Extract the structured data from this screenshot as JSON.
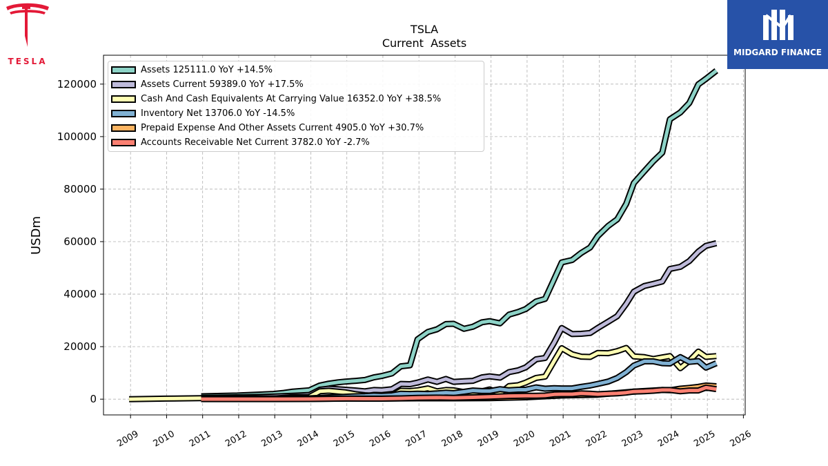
{
  "brand": {
    "left_logo_text": "TESLA",
    "right_logo_text": "MIDGARD FINANCE",
    "right_bg_color": "#2752a8",
    "left_color": "#e31937"
  },
  "chart_data": {
    "type": "line",
    "title": "TSLA",
    "subtitle": "Current  Assets",
    "xlabel": "",
    "ylabel": "USDm",
    "xlim": [
      2008.25,
      2026.05
    ],
    "ylim": [
      -6000,
      131000
    ],
    "x_ticks": [
      "2009",
      "2010",
      "2011",
      "2012",
      "2013",
      "2014",
      "2015",
      "2016",
      "2017",
      "2018",
      "2019",
      "2020",
      "2021",
      "2022",
      "2023",
      "2024",
      "2025",
      "2026"
    ],
    "y_ticks": [
      "0",
      "20000",
      "40000",
      "60000",
      "80000",
      "100000",
      "120000"
    ],
    "grid": true,
    "legend_position": "top-left",
    "series": [
      {
        "name": "Assets  125111.0 YoY +14.5%",
        "color": "#8dd3c7",
        "points": [
          [
            2010.96,
            1100
          ],
          [
            2011.96,
            1400
          ],
          [
            2012.96,
            2000
          ],
          [
            2013.25,
            2400
          ],
          [
            2013.5,
            2900
          ],
          [
            2013.96,
            3400
          ],
          [
            2014.25,
            5200
          ],
          [
            2014.5,
            5900
          ],
          [
            2014.75,
            6400
          ],
          [
            2014.96,
            6700
          ],
          [
            2015.25,
            7000
          ],
          [
            2015.5,
            7300
          ],
          [
            2015.75,
            8300
          ],
          [
            2015.96,
            8800
          ],
          [
            2016.25,
            9800
          ],
          [
            2016.5,
            12500
          ],
          [
            2016.75,
            12900
          ],
          [
            2016.96,
            22800
          ],
          [
            2017.25,
            25600
          ],
          [
            2017.5,
            26600
          ],
          [
            2017.75,
            28600
          ],
          [
            2017.96,
            28700
          ],
          [
            2018.25,
            26800
          ],
          [
            2018.5,
            27600
          ],
          [
            2018.75,
            29300
          ],
          [
            2018.96,
            29700
          ],
          [
            2019.25,
            28900
          ],
          [
            2019.5,
            32200
          ],
          [
            2019.75,
            33200
          ],
          [
            2019.96,
            34300
          ],
          [
            2020.25,
            37200
          ],
          [
            2020.5,
            38200
          ],
          [
            2020.75,
            45700
          ],
          [
            2020.96,
            52100
          ],
          [
            2021.25,
            53000
          ],
          [
            2021.5,
            55700
          ],
          [
            2021.75,
            57800
          ],
          [
            2021.96,
            62100
          ],
          [
            2022.25,
            66000
          ],
          [
            2022.5,
            68500
          ],
          [
            2022.75,
            74400
          ],
          [
            2022.96,
            82300
          ],
          [
            2023.25,
            86800
          ],
          [
            2023.5,
            90600
          ],
          [
            2023.75,
            93900
          ],
          [
            2023.96,
            106600
          ],
          [
            2024.25,
            109200
          ],
          [
            2024.5,
            112800
          ],
          [
            2024.75,
            119900
          ],
          [
            2024.96,
            122000
          ],
          [
            2025.25,
            125100
          ]
        ]
      },
      {
        "name": "Assets Current  59389.0 YoY +17.5%",
        "color": "#bebada",
        "points": [
          [
            2010.96,
            500
          ],
          [
            2011.96,
            700
          ],
          [
            2012.96,
            1000
          ],
          [
            2013.5,
            1300
          ],
          [
            2013.96,
            1600
          ],
          [
            2014.25,
            3600
          ],
          [
            2014.5,
            4000
          ],
          [
            2014.75,
            3800
          ],
          [
            2014.96,
            3600
          ],
          [
            2015.25,
            3300
          ],
          [
            2015.5,
            3000
          ],
          [
            2015.75,
            3500
          ],
          [
            2015.96,
            3400
          ],
          [
            2016.25,
            3800
          ],
          [
            2016.5,
            5800
          ],
          [
            2016.75,
            5700
          ],
          [
            2016.96,
            6300
          ],
          [
            2017.25,
            7500
          ],
          [
            2017.5,
            6600
          ],
          [
            2017.75,
            7700
          ],
          [
            2017.96,
            6600
          ],
          [
            2018.25,
            6800
          ],
          [
            2018.5,
            7000
          ],
          [
            2018.75,
            8300
          ],
          [
            2018.96,
            8700
          ],
          [
            2019.25,
            8200
          ],
          [
            2019.5,
            10300
          ],
          [
            2019.75,
            11000
          ],
          [
            2019.96,
            12100
          ],
          [
            2020.25,
            15200
          ],
          [
            2020.5,
            15700
          ],
          [
            2020.75,
            21500
          ],
          [
            2020.96,
            27100
          ],
          [
            2021.25,
            24800
          ],
          [
            2021.5,
            24900
          ],
          [
            2021.75,
            25200
          ],
          [
            2021.96,
            27100
          ],
          [
            2022.25,
            29500
          ],
          [
            2022.5,
            31600
          ],
          [
            2022.75,
            36300
          ],
          [
            2022.96,
            40900
          ],
          [
            2023.25,
            43100
          ],
          [
            2023.5,
            43900
          ],
          [
            2023.75,
            44800
          ],
          [
            2023.96,
            49600
          ],
          [
            2024.25,
            50400
          ],
          [
            2024.5,
            52600
          ],
          [
            2024.75,
            56200
          ],
          [
            2024.96,
            58400
          ],
          [
            2025.25,
            59400
          ]
        ]
      },
      {
        "name": "Cash And Cash Equivalents At Carrying Value  16352.0 YoY +38.5%",
        "color": "#ffffb3",
        "points": [
          [
            2008.96,
            0
          ],
          [
            2009.96,
            200
          ],
          [
            2010.96,
            400
          ],
          [
            2011.96,
            400
          ],
          [
            2012.96,
            200
          ],
          [
            2013.5,
            750
          ],
          [
            2013.96,
            850
          ],
          [
            2014.25,
            3000
          ],
          [
            2014.5,
            3200
          ],
          [
            2014.75,
            2900
          ],
          [
            2014.96,
            2600
          ],
          [
            2015.25,
            1900
          ],
          [
            2015.5,
            1500
          ],
          [
            2015.75,
            1300
          ],
          [
            2015.96,
            1200
          ],
          [
            2016.25,
            1400
          ],
          [
            2016.5,
            3200
          ],
          [
            2016.75,
            3100
          ],
          [
            2016.96,
            3400
          ],
          [
            2017.25,
            4100
          ],
          [
            2017.5,
            3000
          ],
          [
            2017.75,
            3500
          ],
          [
            2017.96,
            3400
          ],
          [
            2018.25,
            2700
          ],
          [
            2018.5,
            2200
          ],
          [
            2018.75,
            3000
          ],
          [
            2018.96,
            3700
          ],
          [
            2019.25,
            2200
          ],
          [
            2019.5,
            5000
          ],
          [
            2019.75,
            5300
          ],
          [
            2019.96,
            6300
          ],
          [
            2020.25,
            8100
          ],
          [
            2020.5,
            8600
          ],
          [
            2020.75,
            14500
          ],
          [
            2020.96,
            19400
          ],
          [
            2021.25,
            17100
          ],
          [
            2021.5,
            16200
          ],
          [
            2021.75,
            16100
          ],
          [
            2021.96,
            17600
          ],
          [
            2022.25,
            17500
          ],
          [
            2022.5,
            18300
          ],
          [
            2022.75,
            19500
          ],
          [
            2022.96,
            16300
          ],
          [
            2023.25,
            16000
          ],
          [
            2023.5,
            15300
          ],
          [
            2023.75,
            15900
          ],
          [
            2023.96,
            16400
          ],
          [
            2024.25,
            11800
          ],
          [
            2024.5,
            14600
          ],
          [
            2024.75,
            18100
          ],
          [
            2024.96,
            16100
          ],
          [
            2025.25,
            16400
          ]
        ]
      },
      {
        "name": "Inventory Net  13706.0 YoY -14.5%",
        "color": "#80b1d3",
        "points": [
          [
            2010.96,
            100
          ],
          [
            2011.96,
            300
          ],
          [
            2012.96,
            300
          ],
          [
            2013.5,
            400
          ],
          [
            2013.96,
            300
          ],
          [
            2014.25,
            500
          ],
          [
            2014.5,
            700
          ],
          [
            2014.75,
            800
          ],
          [
            2014.96,
            950
          ],
          [
            2015.25,
            1100
          ],
          [
            2015.5,
            1200
          ],
          [
            2015.75,
            1400
          ],
          [
            2015.96,
            1300
          ],
          [
            2016.25,
            1500
          ],
          [
            2016.5,
            2100
          ],
          [
            2016.75,
            2000
          ],
          [
            2016.96,
            2100
          ],
          [
            2017.25,
            2000
          ],
          [
            2017.5,
            2200
          ],
          [
            2017.75,
            2500
          ],
          [
            2017.96,
            2300
          ],
          [
            2018.25,
            2800
          ],
          [
            2018.5,
            3300
          ],
          [
            2018.75,
            3100
          ],
          [
            2018.96,
            3100
          ],
          [
            2019.25,
            3800
          ],
          [
            2019.5,
            3400
          ],
          [
            2019.75,
            3600
          ],
          [
            2019.96,
            3600
          ],
          [
            2020.25,
            4500
          ],
          [
            2020.5,
            4000
          ],
          [
            2020.75,
            4200
          ],
          [
            2020.96,
            4100
          ],
          [
            2021.25,
            4100
          ],
          [
            2021.5,
            4700
          ],
          [
            2021.75,
            5200
          ],
          [
            2021.96,
            5800
          ],
          [
            2022.25,
            6700
          ],
          [
            2022.5,
            8100
          ],
          [
            2022.75,
            10300
          ],
          [
            2022.96,
            12800
          ],
          [
            2023.25,
            14400
          ],
          [
            2023.5,
            14400
          ],
          [
            2023.75,
            13700
          ],
          [
            2023.96,
            13600
          ],
          [
            2024.25,
            16000
          ],
          [
            2024.5,
            14200
          ],
          [
            2024.75,
            14500
          ],
          [
            2024.96,
            12000
          ],
          [
            2025.25,
            13700
          ]
        ]
      },
      {
        "name": "Prepaid Expense And Other Assets Current  4905.0 YoY +30.7%",
        "color": "#fdb462",
        "points": [
          [
            2010.96,
            40
          ],
          [
            2011.96,
            50
          ],
          [
            2012.96,
            50
          ],
          [
            2013.96,
            100
          ],
          [
            2014.96,
            200
          ],
          [
            2015.96,
            200
          ],
          [
            2016.96,
            300
          ],
          [
            2017.96,
            300
          ],
          [
            2018.96,
            400
          ],
          [
            2019.96,
            700
          ],
          [
            2020.96,
            1400
          ],
          [
            2021.96,
            1700
          ],
          [
            2022.96,
            2900
          ],
          [
            2023.25,
            3100
          ],
          [
            2023.5,
            3300
          ],
          [
            2023.75,
            3500
          ],
          [
            2023.96,
            3400
          ],
          [
            2024.25,
            4000
          ],
          [
            2024.5,
            4300
          ],
          [
            2024.75,
            4700
          ],
          [
            2024.96,
            5200
          ],
          [
            2025.25,
            4900
          ]
        ]
      },
      {
        "name": "Accounts Receivable Net Current  3782.0 YoY -2.7%",
        "color": "#fb8072",
        "points": [
          [
            2010.96,
            30
          ],
          [
            2011.96,
            30
          ],
          [
            2012.96,
            30
          ],
          [
            2013.96,
            50
          ],
          [
            2014.96,
            200
          ],
          [
            2015.5,
            170
          ],
          [
            2015.96,
            170
          ],
          [
            2016.5,
            300
          ],
          [
            2016.96,
            500
          ],
          [
            2017.5,
            600
          ],
          [
            2017.96,
            500
          ],
          [
            2018.5,
            700
          ],
          [
            2018.96,
            900
          ],
          [
            2019.5,
            1200
          ],
          [
            2019.96,
            1300
          ],
          [
            2020.25,
            1300
          ],
          [
            2020.5,
            1400
          ],
          [
            2020.75,
            1800
          ],
          [
            2020.96,
            1900
          ],
          [
            2021.25,
            1900
          ],
          [
            2021.5,
            2200
          ],
          [
            2021.75,
            2100
          ],
          [
            2021.96,
            1900
          ],
          [
            2022.25,
            2100
          ],
          [
            2022.5,
            2200
          ],
          [
            2022.75,
            2500
          ],
          [
            2022.96,
            2900
          ],
          [
            2023.25,
            3000
          ],
          [
            2023.5,
            3200
          ],
          [
            2023.75,
            3500
          ],
          [
            2023.96,
            3500
          ],
          [
            2024.25,
            3000
          ],
          [
            2024.5,
            3300
          ],
          [
            2024.75,
            3300
          ],
          [
            2024.96,
            4400
          ],
          [
            2025.25,
            3800
          ]
        ]
      }
    ]
  }
}
